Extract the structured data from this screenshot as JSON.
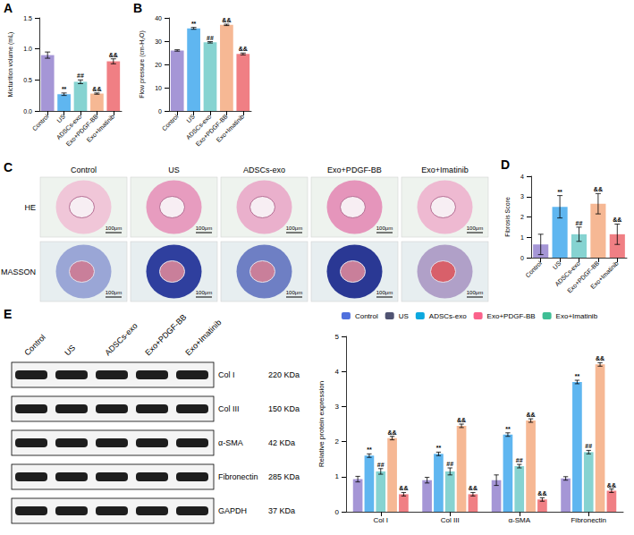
{
  "panels": [
    "A",
    "B",
    "C",
    "D",
    "E"
  ],
  "chart_data": [
    {
      "type": "bar",
      "categories": [
        "Control",
        "US",
        "ADSCs-exo",
        "Exo+PDGF-BB",
        "Exo+Imatinib"
      ],
      "values": [
        0.9,
        0.27,
        0.47,
        0.28,
        0.8
      ],
      "errors": [
        0.05,
        0.02,
        0.03,
        0.01,
        0.04
      ],
      "marks": [
        null,
        "**",
        "##",
        "&&",
        "&&"
      ],
      "colors": [
        "#a596d6",
        "#5fb6f0",
        "#86d3d1",
        "#f6b894",
        "#f07f84"
      ],
      "ylabel": "Micturition volume (mL)",
      "ylim": [
        0,
        1.5
      ],
      "yticks": [
        {
          "value": 0,
          "label": "0.0"
        },
        {
          "value": 0.5,
          "label": "0.5"
        },
        {
          "value": 1,
          "label": "1.0"
        },
        {
          "value": 1.5,
          "label": "1.5"
        }
      ],
      "grid": false
    },
    {
      "type": "bar",
      "categories": [
        "Control",
        "US",
        "ADSCs-exo",
        "Exo+PDGF-BB",
        "Exo+Imatinib"
      ],
      "values": [
        26,
        35.5,
        29.5,
        37,
        24.5
      ],
      "errors": [
        0.3,
        0.4,
        0.3,
        0.3,
        0.4
      ],
      "marks": [
        null,
        "**",
        "##",
        "&&",
        "&&"
      ],
      "colors": [
        "#a596d6",
        "#5fb6f0",
        "#86d3d1",
        "#f6b894",
        "#f07f84"
      ],
      "ylabel": "Flow pressure (cm-H₂O)",
      "ylim": [
        0,
        40
      ],
      "yticks": [
        0,
        10,
        20,
        30,
        40
      ],
      "grid": false
    },
    {
      "type": "bar",
      "categories": [
        "Control",
        "US",
        "ADSCs-exo",
        "Exo+PDGF-BB",
        "Exo+Imatinib"
      ],
      "values": [
        0.65,
        2.5,
        1.15,
        2.65,
        1.15
      ],
      "errors": [
        0.5,
        0.55,
        0.35,
        0.5,
        0.5
      ],
      "marks": [
        null,
        "**",
        "##",
        "&&",
        "&&"
      ],
      "colors": [
        "#a596d6",
        "#5fb6f0",
        "#86d3d1",
        "#f6b894",
        "#f07f84"
      ],
      "ylabel": "Fibrosis Score",
      "ylim": [
        0,
        4
      ],
      "yticks": [
        0,
        1,
        2,
        3,
        4
      ],
      "grid": false
    },
    {
      "type": "bar",
      "categories": [
        "Col I",
        "Col III",
        "α-SMA",
        "Fibronectin"
      ],
      "series": [
        {
          "name": "Control",
          "color": "#a596d6",
          "values": [
            0.93,
            0.9,
            0.9,
            0.95
          ],
          "errors": [
            0.08,
            0.08,
            0.15,
            0.05
          ],
          "marks": [
            null,
            null,
            null,
            null
          ]
        },
        {
          "name": "US",
          "color": "#5fb6f0",
          "values": [
            1.6,
            1.65,
            2.2,
            3.7
          ],
          "errors": [
            0.05,
            0.05,
            0.05,
            0.05
          ],
          "marks": [
            "**",
            "**",
            "**",
            "**"
          ]
        },
        {
          "name": "ADSCs-exo",
          "color": "#86d3d1",
          "values": [
            1.15,
            1.15,
            1.3,
            1.7
          ],
          "errors": [
            0.08,
            0.1,
            0.05,
            0.05
          ],
          "marks": [
            "##",
            "##",
            "##",
            "##"
          ]
        },
        {
          "name": "Exo+PDGF-BB",
          "color": "#f6b894",
          "values": [
            2.1,
            2.45,
            2.6,
            4.2
          ],
          "errors": [
            0.05,
            0.05,
            0.05,
            0.05
          ],
          "marks": [
            "&&",
            "&&",
            "&&",
            "&&"
          ]
        },
        {
          "name": "Exo+Imatinib",
          "color": "#f07f84",
          "values": [
            0.5,
            0.5,
            0.35,
            0.6
          ],
          "errors": [
            0.05,
            0.05,
            0.05,
            0.05
          ],
          "marks": [
            "&&",
            "&&",
            "&&",
            "&&"
          ]
        }
      ],
      "ylabel": "Relative protein expression",
      "ylim": [
        0,
        5
      ],
      "yticks": [
        0,
        1,
        2,
        3,
        4,
        5
      ],
      "legend": "top",
      "grid": false
    }
  ],
  "histology": {
    "columns": [
      "Control",
      "US",
      "ADSCs-exo",
      "Exo+PDGF-BB",
      "Exo+Imatinib"
    ],
    "rows": [
      "HE",
      "MASSON"
    ],
    "scale_bar": "100μm"
  },
  "western_blot": {
    "lanes": [
      "Control",
      "US",
      "ADSCs-exo",
      "Exo+PDGF-BB",
      "Exo+Imatinib"
    ],
    "bands": [
      {
        "name": "Col I",
        "size": "220 KDa"
      },
      {
        "name": "Col III",
        "size": "150 KDa"
      },
      {
        "name": "α-SMA",
        "size": "42 KDa"
      },
      {
        "name": "Fibronectin",
        "size": "285 KDa"
      },
      {
        "name": "GAPDH",
        "size": "37 KDa"
      }
    ]
  }
}
